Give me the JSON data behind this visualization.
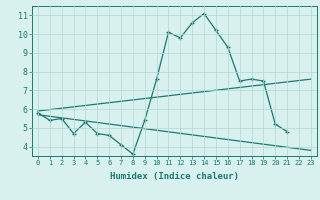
{
  "x": [
    0,
    1,
    2,
    3,
    4,
    5,
    6,
    7,
    8,
    9,
    10,
    11,
    12,
    13,
    14,
    15,
    16,
    17,
    18,
    19,
    20,
    21,
    22,
    23
  ],
  "line1": [
    5.8,
    5.4,
    5.5,
    4.7,
    5.3,
    4.7,
    4.6,
    4.1,
    3.6,
    5.4,
    7.6,
    10.1,
    9.8,
    10.6,
    11.1,
    10.2,
    9.3,
    7.5,
    7.6,
    7.5,
    5.2,
    4.8,
    null,
    null
  ],
  "line2_x": [
    0,
    23
  ],
  "line2_y": [
    5.9,
    7.6
  ],
  "line3_x": [
    0,
    23
  ],
  "line3_y": [
    5.7,
    3.8
  ],
  "line_color": "#1a7a6e",
  "bg_color": "#d8f0ee",
  "grid_color": "#b0d8d4",
  "xlabel": "Humidex (Indice chaleur)",
  "ylim": [
    3.5,
    11.5
  ],
  "xlim": [
    -0.5,
    23.5
  ],
  "yticks": [
    4,
    5,
    6,
    7,
    8,
    9,
    10,
    11
  ],
  "xticks": [
    0,
    1,
    2,
    3,
    4,
    5,
    6,
    7,
    8,
    9,
    10,
    11,
    12,
    13,
    14,
    15,
    16,
    17,
    18,
    19,
    20,
    21,
    22,
    23
  ]
}
